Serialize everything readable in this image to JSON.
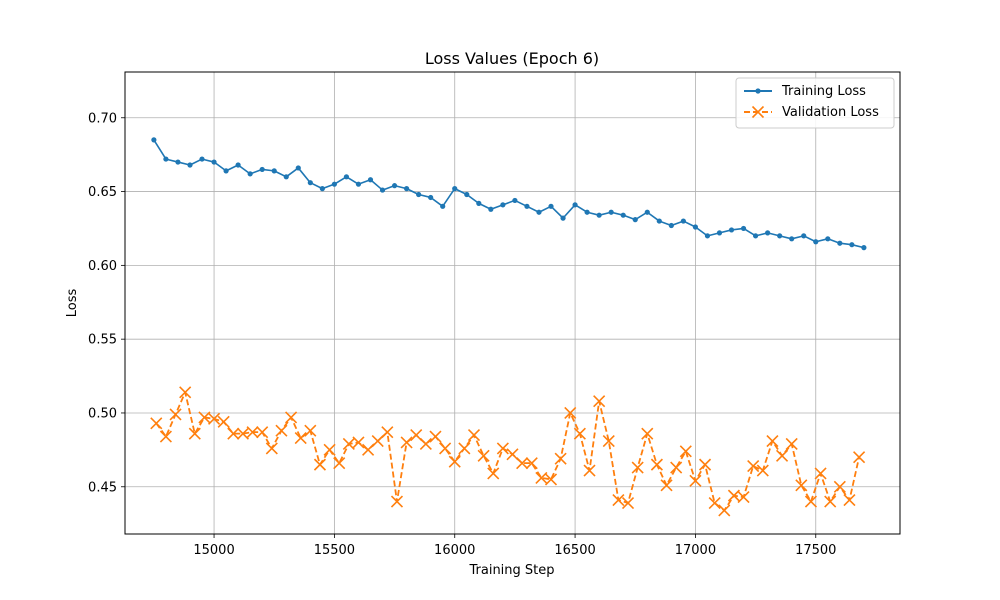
{
  "chart_data": {
    "type": "line",
    "title": "Loss Values (Epoch 6)",
    "xlabel": "Training Step",
    "ylabel": "Loss",
    "xlim": [
      14630,
      17850
    ],
    "ylim": [
      0.418,
      0.731
    ],
    "xticks": [
      15000,
      15500,
      16000,
      16500,
      17000,
      17500
    ],
    "yticks": [
      0.45,
      0.5,
      0.55,
      0.6,
      0.65,
      0.7
    ],
    "grid": true,
    "legend_position": "top-right",
    "series": [
      {
        "name": "Training Loss",
        "color": "#1f77b4",
        "marker": "circle",
        "linestyle": "solid",
        "x": [
          14750,
          14800,
          14850,
          14900,
          14950,
          15000,
          15050,
          15100,
          15150,
          15200,
          15250,
          15300,
          15350,
          15400,
          15450,
          15500,
          15550,
          15600,
          15650,
          15700,
          15750,
          15800,
          15850,
          15900,
          15950,
          16000,
          16050,
          16100,
          16150,
          16200,
          16250,
          16300,
          16350,
          16400,
          16450,
          16500,
          16550,
          16600,
          16650,
          16700,
          16750,
          16800,
          16850,
          16900,
          16950,
          17000,
          17050,
          17100,
          17150,
          17200,
          17250,
          17300,
          17350,
          17400,
          17450,
          17500,
          17550,
          17600,
          17650,
          17700
        ],
        "values": [
          0.685,
          0.672,
          0.67,
          0.668,
          0.672,
          0.67,
          0.664,
          0.668,
          0.662,
          0.665,
          0.664,
          0.66,
          0.666,
          0.656,
          0.652,
          0.655,
          0.66,
          0.655,
          0.658,
          0.651,
          0.654,
          0.652,
          0.648,
          0.646,
          0.64,
          0.652,
          0.648,
          0.642,
          0.638,
          0.641,
          0.644,
          0.64,
          0.636,
          0.64,
          0.632,
          0.641,
          0.636,
          0.634,
          0.636,
          0.634,
          0.631,
          0.636,
          0.63,
          0.627,
          0.63,
          0.626,
          0.62,
          0.622,
          0.624,
          0.625,
          0.62,
          0.622,
          0.62,
          0.618,
          0.62,
          0.616,
          0.618,
          0.615,
          0.614,
          0.612
        ]
      },
      {
        "name": "Validation Loss",
        "color": "#ff7f0e",
        "marker": "x",
        "linestyle": "dashed",
        "x": [
          14760,
          14800,
          14840,
          14880,
          14920,
          14960,
          15000,
          15040,
          15080,
          15120,
          15160,
          15200,
          15240,
          15280,
          15320,
          15360,
          15400,
          15440,
          15480,
          15520,
          15560,
          15600,
          15640,
          15680,
          15720,
          15760,
          15800,
          15840,
          15880,
          15920,
          15960,
          16000,
          16040,
          16080,
          16120,
          16160,
          16200,
          16240,
          16280,
          16320,
          16360,
          16400,
          16440,
          16480,
          16520,
          16560,
          16600,
          16640,
          16680,
          16720,
          16760,
          16800,
          16840,
          16880,
          16920,
          16960,
          17000,
          17040,
          17080,
          17120,
          17160,
          17200,
          17240,
          17280,
          17320,
          17360,
          17400,
          17440,
          17480,
          17520,
          17560,
          17600,
          17640,
          17680
        ],
        "values": [
          0.493,
          0.484,
          0.499,
          0.514,
          0.486,
          0.497,
          0.496,
          0.494,
          0.486,
          0.486,
          0.487,
          0.487,
          0.476,
          0.488,
          0.497,
          0.483,
          0.488,
          0.465,
          0.475,
          0.466,
          0.479,
          0.48,
          0.475,
          0.481,
          0.487,
          0.44,
          0.48,
          0.485,
          0.479,
          0.484,
          0.476,
          0.467,
          0.476,
          0.485,
          0.471,
          0.459,
          0.476,
          0.472,
          0.466,
          0.466,
          0.456,
          0.455,
          0.469,
          0.5,
          0.486,
          0.461,
          0.508,
          0.481,
          0.441,
          0.439,
          0.463,
          0.486,
          0.465,
          0.451,
          0.463,
          0.474,
          0.454,
          0.465,
          0.439,
          0.434,
          0.444,
          0.443,
          0.464,
          0.461,
          0.481,
          0.471,
          0.479,
          0.451,
          0.44,
          0.459,
          0.44,
          0.45,
          0.441,
          0.47
        ]
      }
    ]
  }
}
